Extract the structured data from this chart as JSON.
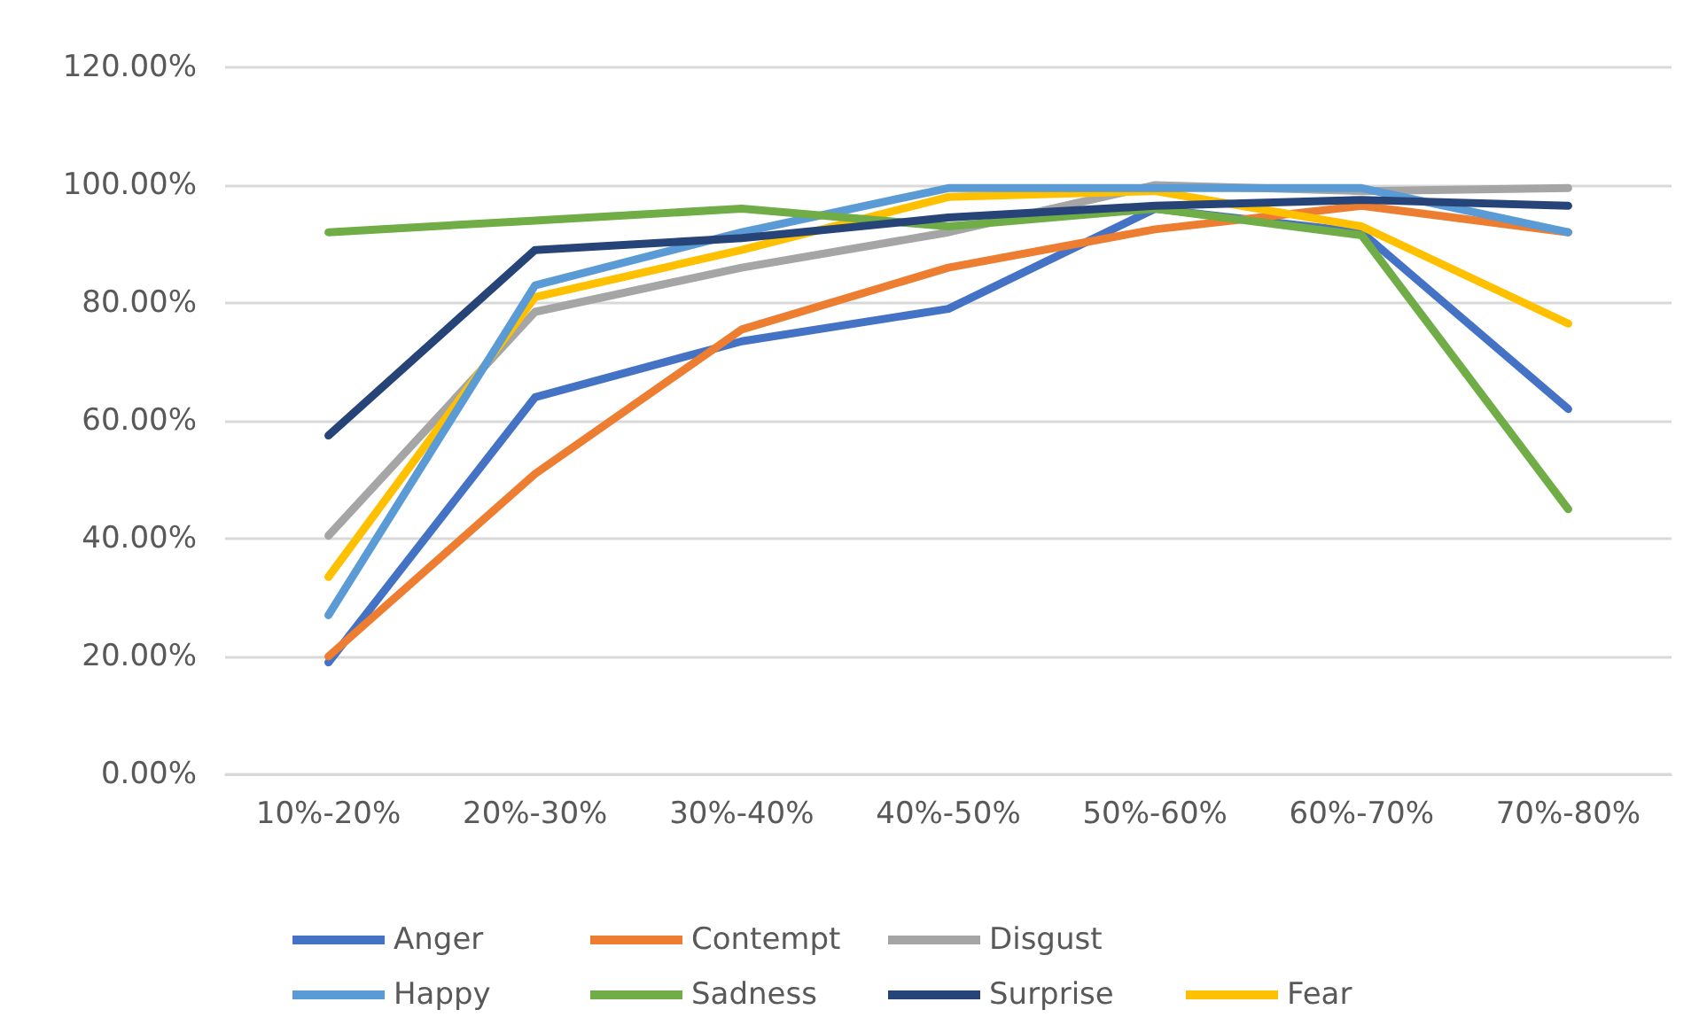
{
  "chart_data": {
    "type": "line",
    "categories": [
      "10%-20%",
      "20%-30%",
      "30%-40%",
      "40%-50%",
      "50%-60%",
      "60%-70%",
      "70%-80%"
    ],
    "series": [
      {
        "name": "Anger",
        "color": "#4472c4",
        "values": [
          19,
          64,
          73.5,
          79,
          96,
          92,
          62
        ]
      },
      {
        "name": "Contempt",
        "color": "#ed7d31",
        "values": [
          20,
          51,
          75.5,
          86,
          92.5,
          96.5,
          92
        ]
      },
      {
        "name": "Disgust",
        "color": "#a5a5a5",
        "values": [
          40.5,
          78.5,
          86,
          92,
          100,
          99,
          99.5
        ]
      },
      {
        "name": "Fear",
        "color": "#ffc000",
        "values": [
          33.5,
          81,
          89,
          98,
          99,
          93,
          76.5
        ]
      },
      {
        "name": "Happy",
        "color": "#5b9bd5",
        "values": [
          27,
          83,
          92,
          99.5,
          99.5,
          99.5,
          92
        ]
      },
      {
        "name": "Sadness",
        "color": "#70ad47",
        "values": [
          92,
          94,
          96,
          93,
          96,
          91.5,
          45
        ]
      },
      {
        "name": "Surprise",
        "color": "#264478",
        "values": [
          57.5,
          89,
          91,
          94.5,
          96.5,
          97.5,
          96.5
        ]
      }
    ],
    "ylim": [
      0,
      120
    ],
    "yticks": [
      {
        "value": 0,
        "label": "0.00%"
      },
      {
        "value": 20,
        "label": "20.00%"
      },
      {
        "value": 40,
        "label": "40.00%"
      },
      {
        "value": 60,
        "label": "60.00%"
      },
      {
        "value": 80,
        "label": "80.00%"
      },
      {
        "value": 100,
        "label": "100.00%"
      },
      {
        "value": 120,
        "label": "120.00%"
      }
    ],
    "grid": "y",
    "legend": "bottom",
    "marker": "none",
    "line_style": "solid"
  }
}
